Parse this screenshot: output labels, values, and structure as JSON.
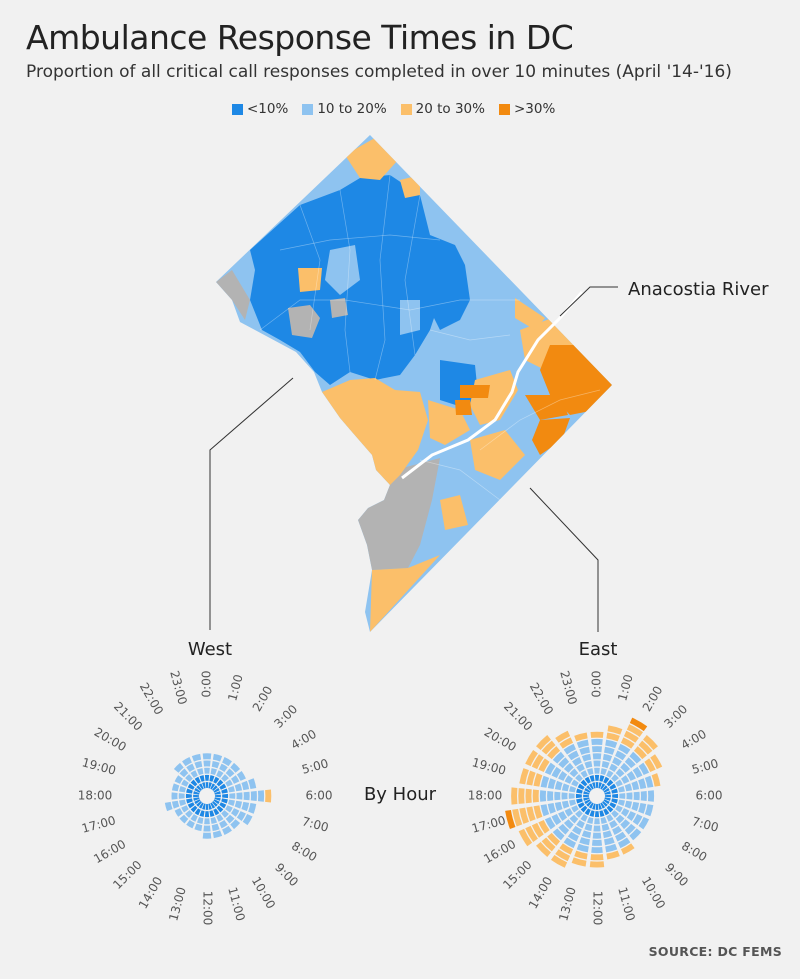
{
  "header": {
    "title": "Ambulance Response Times in DC",
    "subtitle": "Proportion of all critical call responses completed in over 10 minutes (April '14-'16)"
  },
  "legend": [
    {
      "label": "<10%",
      "color": "#1e88e5"
    },
    {
      "label": "10 to 20%",
      "color": "#8ec3f0"
    },
    {
      "label": "20 to 30%",
      "color": "#fbbf6a"
    },
    {
      "label": ">30%",
      "color": "#f28a10"
    }
  ],
  "colors": {
    "nodata": "#b3b3b3",
    "river": "#ffffff",
    "callout": "#333333"
  },
  "map": {
    "annotation": "Anacostia River"
  },
  "radials": {
    "center_label": "By Hour",
    "west_label": "West",
    "east_label": "East",
    "hours": [
      "0:00",
      "1:00",
      "2:00",
      "3:00",
      "4:00",
      "5:00",
      "6:00",
      "7:00",
      "8:00",
      "9:00",
      "10:00",
      "11:00",
      "12:00",
      "13:00",
      "14:00",
      "15:00",
      "16:00",
      "17:00",
      "18:00",
      "19:00",
      "20:00",
      "21:00",
      "22:00",
      "23:00"
    ]
  },
  "chart_data": {
    "type": "radial-stacked-bar",
    "series_levels": [
      "<10%",
      "10 to 20%",
      "20 to 30%",
      ">30%"
    ],
    "west": [
      {
        "hour": "0:00",
        "rings": [
          0,
          0,
          1,
          1,
          1
        ]
      },
      {
        "hour": "1:00",
        "rings": [
          0,
          0,
          1,
          1,
          1
        ]
      },
      {
        "hour": "2:00",
        "rings": [
          0,
          0,
          1,
          1,
          1
        ]
      },
      {
        "hour": "3:00",
        "rings": [
          0,
          0,
          1,
          1,
          1
        ]
      },
      {
        "hour": "4:00",
        "rings": [
          0,
          0,
          1,
          1,
          1
        ]
      },
      {
        "hour": "5:00",
        "rings": [
          0,
          0,
          1,
          1,
          1,
          1
        ]
      },
      {
        "hour": "6:00",
        "rings": [
          0,
          0,
          1,
          1,
          1,
          1,
          1,
          2
        ]
      },
      {
        "hour": "7:00",
        "rings": [
          0,
          0,
          1,
          1,
          1,
          1
        ]
      },
      {
        "hour": "8:00",
        "rings": [
          0,
          0,
          1,
          1,
          1,
          1
        ]
      },
      {
        "hour": "9:00",
        "rings": [
          0,
          0,
          1,
          1,
          1
        ]
      },
      {
        "hour": "10:00",
        "rings": [
          0,
          0,
          1,
          1,
          1
        ]
      },
      {
        "hour": "11:00",
        "rings": [
          0,
          0,
          1,
          1,
          1
        ]
      },
      {
        "hour": "12:00",
        "rings": [
          0,
          0,
          1,
          1,
          1
        ]
      },
      {
        "hour": "13:00",
        "rings": [
          0,
          0,
          1,
          1
        ]
      },
      {
        "hour": "14:00",
        "rings": [
          0,
          0,
          1,
          1
        ]
      },
      {
        "hour": "15:00",
        "rings": [
          0,
          0,
          1,
          1
        ]
      },
      {
        "hour": "16:00",
        "rings": [
          0,
          0,
          1,
          1
        ]
      },
      {
        "hour": "17:00",
        "rings": [
          0,
          0,
          1,
          1,
          1
        ]
      },
      {
        "hour": "18:00",
        "rings": [
          0,
          0,
          1,
          1
        ]
      },
      {
        "hour": "19:00",
        "rings": [
          0,
          0,
          1,
          1
        ]
      },
      {
        "hour": "20:00",
        "rings": [
          0,
          0,
          1,
          1
        ]
      },
      {
        "hour": "21:00",
        "rings": [
          0,
          0,
          1,
          1,
          1
        ]
      },
      {
        "hour": "22:00",
        "rings": [
          0,
          0,
          1,
          1,
          1
        ]
      },
      {
        "hour": "23:00",
        "rings": [
          0,
          0,
          1,
          1,
          1
        ]
      }
    ],
    "east": [
      {
        "hour": "0:00",
        "rings": [
          0,
          0,
          1,
          1,
          1,
          1,
          1,
          2
        ]
      },
      {
        "hour": "1:00",
        "rings": [
          0,
          0,
          1,
          1,
          1,
          1,
          1,
          2,
          2
        ]
      },
      {
        "hour": "2:00",
        "rings": [
          0,
          0,
          1,
          1,
          1,
          1,
          1,
          2,
          2,
          2,
          3
        ]
      },
      {
        "hour": "3:00",
        "rings": [
          0,
          0,
          1,
          1,
          1,
          1,
          1,
          2,
          2,
          2
        ]
      },
      {
        "hour": "4:00",
        "rings": [
          0,
          0,
          1,
          1,
          1,
          1,
          1,
          2,
          2
        ]
      },
      {
        "hour": "5:00",
        "rings": [
          0,
          0,
          1,
          1,
          1,
          1,
          1,
          2
        ]
      },
      {
        "hour": "6:00",
        "rings": [
          0,
          0,
          1,
          1,
          1,
          1,
          1
        ]
      },
      {
        "hour": "7:00",
        "rings": [
          0,
          0,
          1,
          1,
          1,
          1,
          1
        ]
      },
      {
        "hour": "8:00",
        "rings": [
          0,
          0,
          1,
          1,
          1,
          1,
          1
        ]
      },
      {
        "hour": "9:00",
        "rings": [
          0,
          0,
          1,
          1,
          1,
          1,
          1
        ]
      },
      {
        "hour": "10:00",
        "rings": [
          0,
          0,
          1,
          1,
          1,
          1,
          1,
          2
        ]
      },
      {
        "hour": "11:00",
        "rings": [
          0,
          0,
          1,
          1,
          1,
          1,
          1,
          2
        ]
      },
      {
        "hour": "12:00",
        "rings": [
          0,
          0,
          1,
          1,
          1,
          1,
          1,
          2,
          2
        ]
      },
      {
        "hour": "13:00",
        "rings": [
          0,
          0,
          1,
          1,
          1,
          1,
          1,
          2,
          2
        ]
      },
      {
        "hour": "14:00",
        "rings": [
          0,
          0,
          1,
          1,
          1,
          1,
          1,
          2,
          2,
          2
        ]
      },
      {
        "hour": "15:00",
        "rings": [
          0,
          0,
          1,
          1,
          1,
          1,
          1,
          2,
          2,
          2
        ]
      },
      {
        "hour": "16:00",
        "rings": [
          0,
          0,
          1,
          1,
          1,
          1,
          1,
          2,
          2,
          2,
          2
        ]
      },
      {
        "hour": "17:00",
        "rings": [
          0,
          0,
          1,
          1,
          1,
          1,
          1,
          2,
          2,
          2,
          2,
          3
        ]
      },
      {
        "hour": "18:00",
        "rings": [
          0,
          0,
          1,
          1,
          1,
          1,
          1,
          2,
          2,
          2,
          2
        ]
      },
      {
        "hour": "19:00",
        "rings": [
          0,
          0,
          1,
          1,
          1,
          1,
          1,
          2,
          2,
          2
        ]
      },
      {
        "hour": "20:00",
        "rings": [
          0,
          0,
          1,
          1,
          1,
          1,
          1,
          2,
          2,
          2
        ]
      },
      {
        "hour": "21:00",
        "rings": [
          0,
          0,
          1,
          1,
          1,
          1,
          1,
          2,
          2,
          2
        ]
      },
      {
        "hour": "22:00",
        "rings": [
          0,
          0,
          1,
          1,
          1,
          1,
          1,
          2,
          2
        ]
      },
      {
        "hour": "23:00",
        "rings": [
          0,
          0,
          1,
          1,
          1,
          1,
          1,
          2
        ]
      }
    ]
  }
}
